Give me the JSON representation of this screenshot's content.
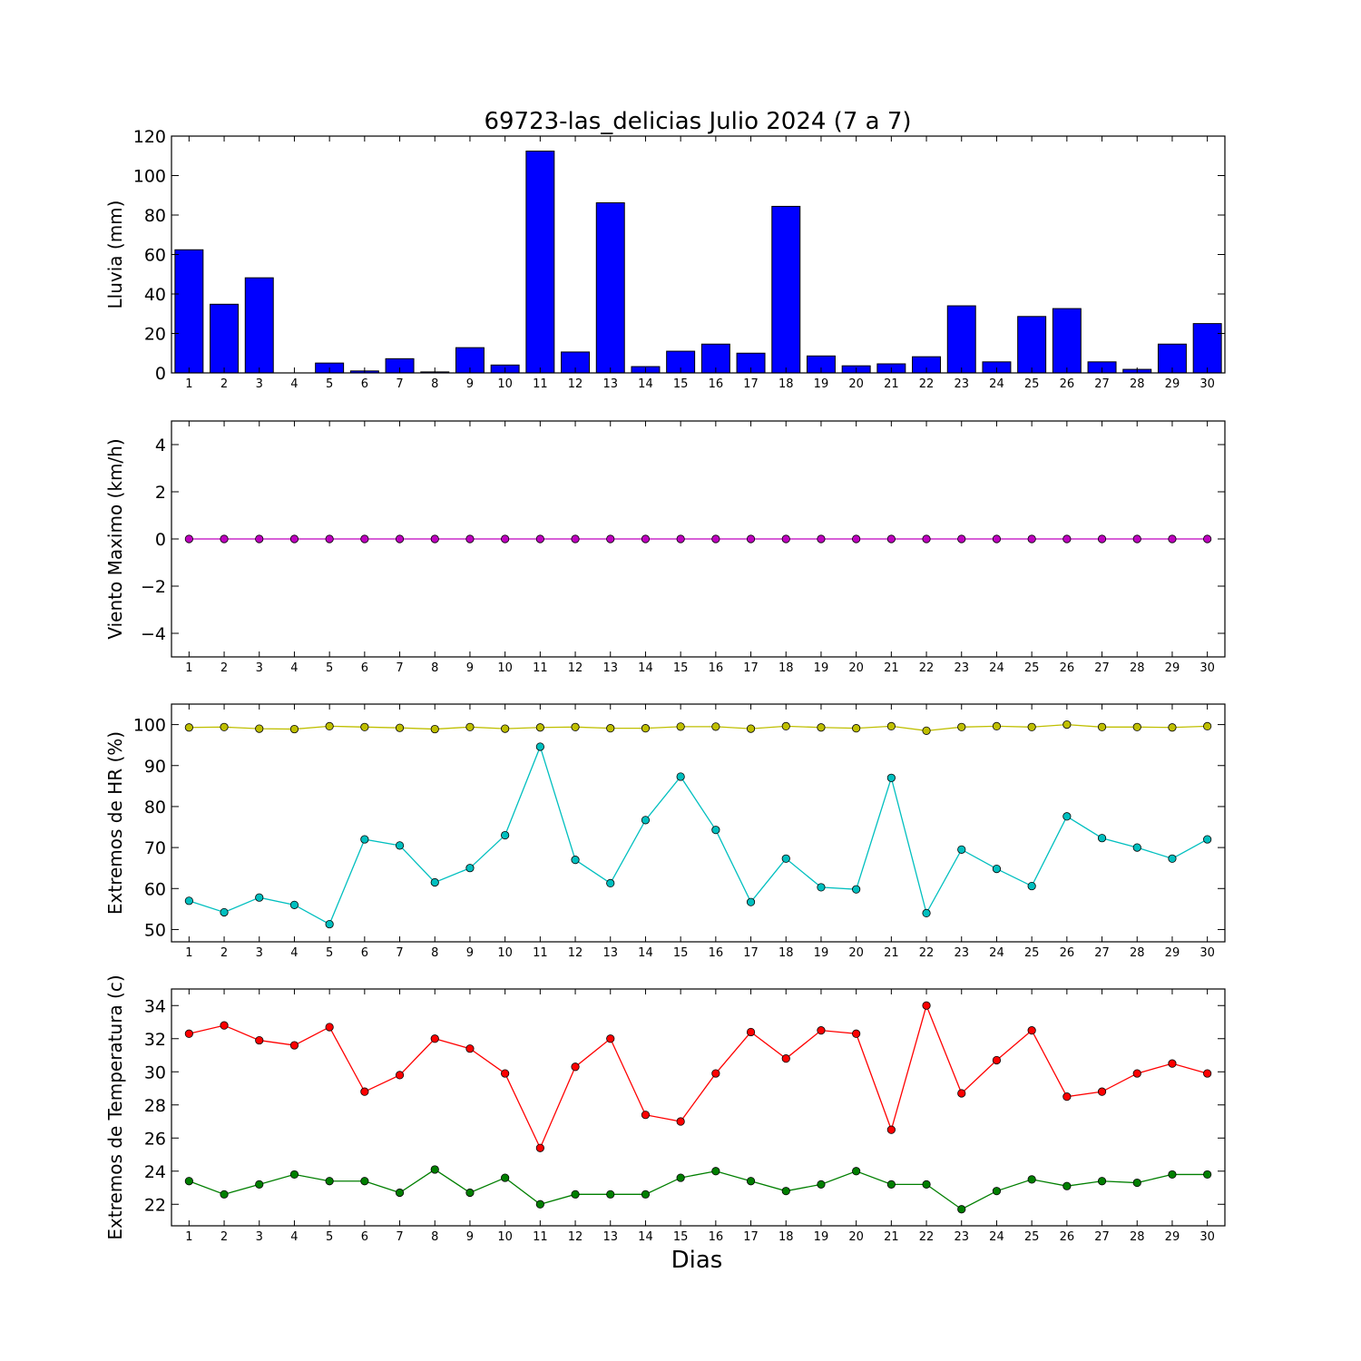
{
  "title": "69723-las_delicias Julio 2024  (7 a 7)",
  "xlabel": "Dias",
  "chart_data": [
    {
      "type": "bar",
      "name": "lluvia",
      "ylabel": "Lluvia (mm)",
      "ylim": [
        0,
        120
      ],
      "yticks": [
        0,
        20,
        40,
        60,
        80,
        100,
        120
      ],
      "ytick_labels": [
        "0",
        "20",
        "40",
        "60",
        "80",
        "100",
        "120"
      ],
      "categories": [
        "1",
        "2",
        "3",
        "4",
        "5",
        "6",
        "7",
        "8",
        "9",
        "10",
        "11",
        "12",
        "13",
        "14",
        "15",
        "16",
        "17",
        "18",
        "19",
        "20",
        "21",
        "22",
        "23",
        "24",
        "25",
        "26",
        "27",
        "28",
        "29",
        "30"
      ],
      "values": [
        62.4,
        34.8,
        48.2,
        0,
        5.0,
        1.0,
        7.2,
        0.5,
        12.8,
        4.0,
        112.4,
        10.6,
        86.2,
        3.2,
        11.0,
        14.6,
        10.0,
        84.4,
        8.6,
        3.6,
        4.6,
        8.2,
        34.0,
        5.6,
        28.6,
        32.6,
        5.6,
        1.8,
        14.6,
        25.0
      ],
      "color": "#0000ff",
      "grid": false
    },
    {
      "type": "line",
      "name": "viento",
      "ylabel": "Viento Maximo (km/h)",
      "ylim": [
        -5,
        5
      ],
      "yticks": [
        -4,
        -2,
        0,
        2,
        4
      ],
      "ytick_labels": [
        "−4",
        "−2",
        "0",
        "2",
        "4"
      ],
      "categories": [
        "1",
        "2",
        "3",
        "4",
        "5",
        "6",
        "7",
        "8",
        "9",
        "10",
        "11",
        "12",
        "13",
        "14",
        "15",
        "16",
        "17",
        "18",
        "19",
        "20",
        "21",
        "22",
        "23",
        "24",
        "25",
        "26",
        "27",
        "28",
        "29",
        "30"
      ],
      "series": [
        {
          "color": "#bf00bf",
          "values": [
            0,
            0,
            0,
            0,
            0,
            0,
            0,
            0,
            0,
            0,
            0,
            0,
            0,
            0,
            0,
            0,
            0,
            0,
            0,
            0,
            0,
            0,
            0,
            0,
            0,
            0,
            0,
            0,
            0,
            0
          ]
        }
      ],
      "grid": false
    },
    {
      "type": "line",
      "name": "humedad",
      "ylabel": "Extremos de HR (%)",
      "ylim": [
        47,
        105
      ],
      "yticks": [
        50,
        60,
        70,
        80,
        90,
        100
      ],
      "ytick_labels": [
        "50",
        "60",
        "70",
        "80",
        "90",
        "100"
      ],
      "categories": [
        "1",
        "2",
        "3",
        "4",
        "5",
        "6",
        "7",
        "8",
        "9",
        "10",
        "11",
        "12",
        "13",
        "14",
        "15",
        "16",
        "17",
        "18",
        "19",
        "20",
        "21",
        "22",
        "23",
        "24",
        "25",
        "26",
        "27",
        "28",
        "29",
        "30"
      ],
      "series": [
        {
          "color": "#bfbf00",
          "values": [
            99.3,
            99.4,
            99.0,
            98.9,
            99.6,
            99.4,
            99.2,
            98.9,
            99.4,
            99.0,
            99.3,
            99.4,
            99.1,
            99.1,
            99.5,
            99.5,
            99.0,
            99.6,
            99.3,
            99.1,
            99.6,
            98.5,
            99.4,
            99.6,
            99.4,
            100.0,
            99.4,
            99.4,
            99.3,
            99.6
          ]
        },
        {
          "color": "#00bfbf",
          "values": [
            57.0,
            54.2,
            57.8,
            56.0,
            51.3,
            72.0,
            70.5,
            61.5,
            65.0,
            73.0,
            94.6,
            67.0,
            61.3,
            76.7,
            87.3,
            74.3,
            56.7,
            67.3,
            60.3,
            59.8,
            87.0,
            54.0,
            69.5,
            64.8,
            60.6,
            77.6,
            72.3,
            70.0,
            67.3,
            72.0
          ]
        }
      ],
      "grid": false
    },
    {
      "type": "line",
      "name": "temperatura",
      "ylabel": "Extremos de Temperatura (c)",
      "ylim": [
        20.7,
        35.0
      ],
      "yticks": [
        22,
        24,
        26,
        28,
        30,
        32,
        34
      ],
      "ytick_labels": [
        "22",
        "24",
        "26",
        "28",
        "30",
        "32",
        "34"
      ],
      "categories": [
        "1",
        "2",
        "3",
        "4",
        "5",
        "6",
        "7",
        "8",
        "9",
        "10",
        "11",
        "12",
        "13",
        "14",
        "15",
        "16",
        "17",
        "18",
        "19",
        "20",
        "21",
        "22",
        "23",
        "24",
        "25",
        "26",
        "27",
        "28",
        "29",
        "30"
      ],
      "series": [
        {
          "color": "#ff0000",
          "values": [
            32.3,
            32.8,
            31.9,
            31.6,
            32.7,
            28.8,
            29.8,
            32.0,
            31.4,
            29.9,
            25.4,
            30.3,
            32.0,
            27.4,
            27.0,
            29.9,
            32.4,
            30.8,
            32.5,
            32.3,
            26.5,
            34.0,
            28.7,
            30.7,
            32.5,
            28.5,
            28.8,
            29.9,
            30.5,
            29.9
          ]
        },
        {
          "color": "#007f00",
          "values": [
            23.4,
            22.6,
            23.2,
            23.8,
            23.4,
            23.4,
            22.7,
            24.1,
            22.7,
            23.6,
            22.0,
            22.6,
            22.6,
            22.6,
            23.6,
            24.0,
            23.4,
            22.8,
            23.2,
            24.0,
            23.2,
            23.2,
            21.7,
            22.8,
            23.5,
            23.1,
            23.4,
            23.3,
            23.8,
            23.8
          ]
        }
      ],
      "grid": false
    }
  ]
}
